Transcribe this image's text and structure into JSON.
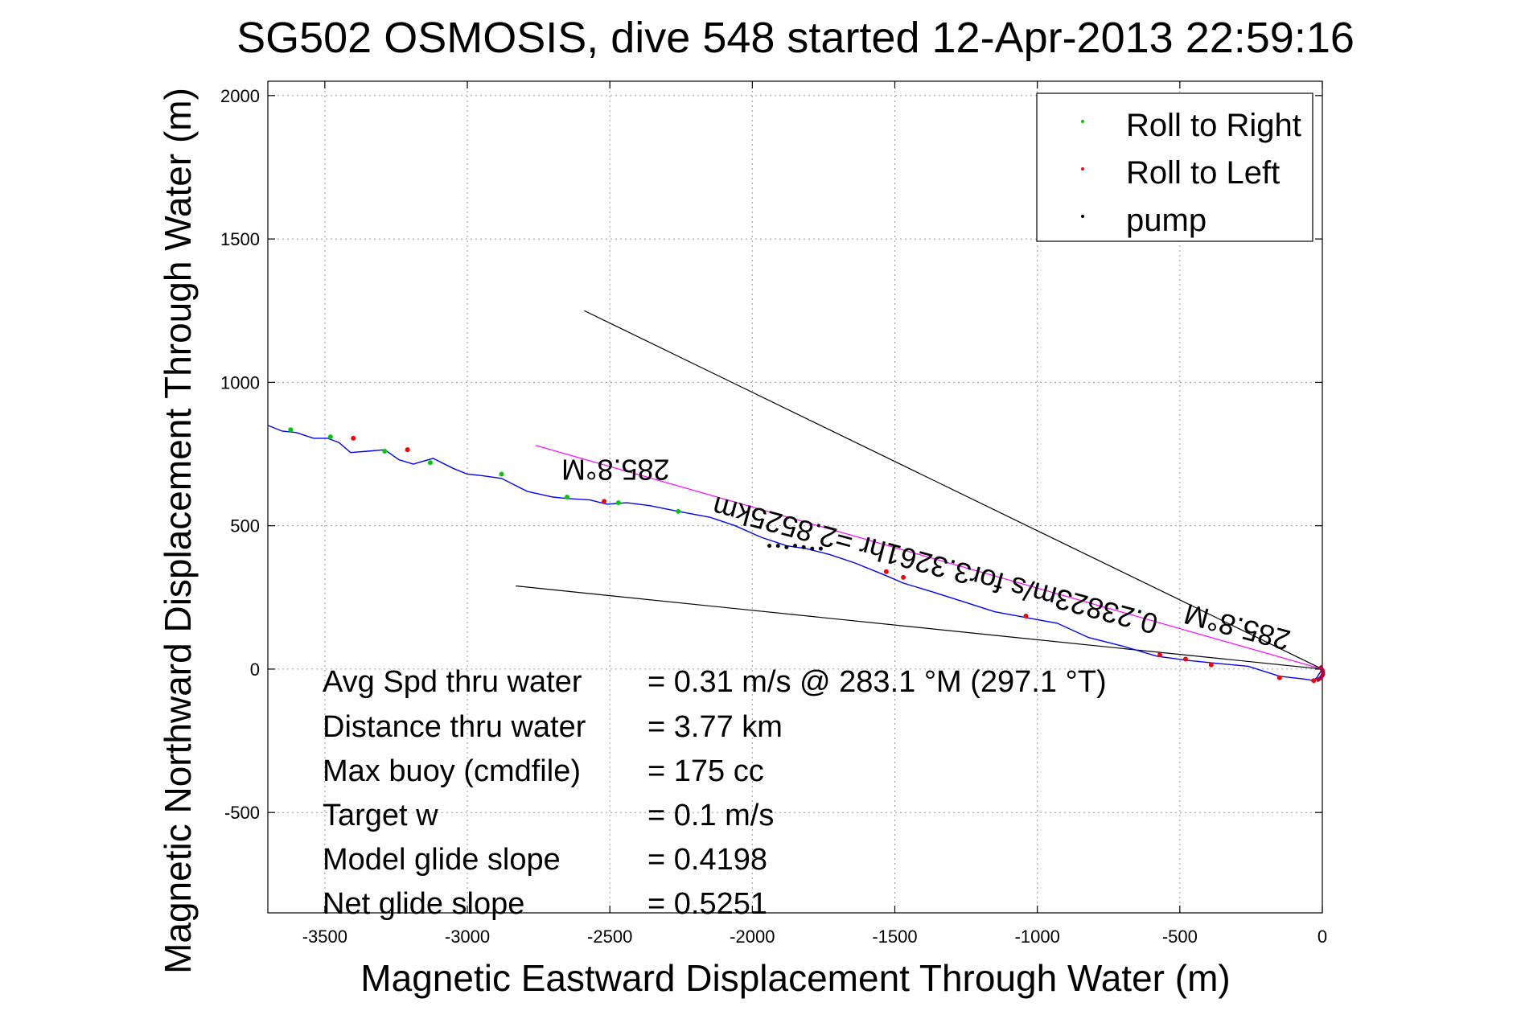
{
  "title": "SG502 OSMOSIS, dive 548 started 12-Apr-2013 22:59:16",
  "chart_data": {
    "type": "line",
    "title": "SG502 OSMOSIS, dive 548 started 12-Apr-2013 22:59:16",
    "xlabel": "Magnetic Eastward Displacement Through Water (m)",
    "ylabel": "Magnetic Northward Displacement Through Water (m)",
    "xlim": [
      -3700,
      0
    ],
    "ylim": [
      -850,
      2050
    ],
    "xticks": [
      -3500,
      -3000,
      -2500,
      -2000,
      -1500,
      -1000,
      -500,
      0
    ],
    "yticks": [
      -500,
      0,
      500,
      1000,
      1500,
      2000
    ],
    "xtick_labels": [
      "-3500",
      "-3000",
      "-2500",
      "-2000",
      "-1500",
      "-1000",
      "-500",
      "0"
    ],
    "ytick_labels": [
      "-500",
      "0",
      "500",
      "1000",
      "1500",
      "2000"
    ],
    "grid": true,
    "legend_position": "top-right",
    "legend": [
      {
        "label": "Roll to Right",
        "color": "#00cc00"
      },
      {
        "label": "Roll to Left",
        "color": "#ff0000"
      },
      {
        "label": "pump",
        "color": "#000000"
      }
    ],
    "track": {
      "color": "#0000ff",
      "x": [
        0,
        -10,
        -20,
        -30,
        -60,
        -150,
        -260,
        -370,
        -470,
        -580,
        -700,
        -820,
        -930,
        -1040,
        -1150,
        -1260,
        -1370,
        -1470,
        -1540,
        -1640,
        -1730,
        -1810,
        -1880,
        -1970,
        -2060,
        -2150,
        -2260,
        -2360,
        -2440,
        -2510,
        -2570,
        -2650,
        -2700,
        -2790,
        -2880,
        -2950,
        -3000,
        -3050,
        -3120,
        -3190,
        -3240,
        -3290,
        -3350,
        -3410,
        -3450,
        -3490,
        -3540,
        -3600,
        -3650,
        -3700
      ],
      "y": [
        0,
        -15,
        -30,
        -40,
        -35,
        -25,
        10,
        20,
        30,
        45,
        80,
        110,
        160,
        180,
        200,
        235,
        270,
        300,
        330,
        370,
        400,
        420,
        430,
        460,
        500,
        530,
        550,
        570,
        580,
        575,
        590,
        595,
        600,
        620,
        665,
        675,
        680,
        700,
        735,
        715,
        730,
        765,
        760,
        755,
        790,
        805,
        805,
        825,
        830,
        850
      ]
    },
    "roll_right_markers": {
      "color": "#00cc00",
      "x": [
        -3620,
        -3480,
        -3290,
        -3130,
        -2880,
        -2650,
        -2470,
        -2260
      ],
      "y": [
        835,
        810,
        760,
        720,
        680,
        600,
        580,
        550
      ]
    },
    "roll_left_markers": {
      "color": "#ff0000",
      "x": [
        -3400,
        -3210,
        -2520,
        -1530,
        -1470,
        -1040,
        -570,
        -480,
        -390,
        -150,
        -30
      ],
      "y": [
        805,
        765,
        585,
        340,
        320,
        185,
        50,
        35,
        15,
        -30,
        -40
      ]
    },
    "pump_markers": {
      "color": "#000000",
      "x": [
        -1940,
        -1910,
        -1880,
        -1850,
        -1820,
        -1790,
        -1760
      ],
      "y": [
        430,
        430,
        425,
        430,
        425,
        420,
        420
      ]
    },
    "heading_line": {
      "color": "#ff00ff",
      "x": [
        0,
        -2760
      ],
      "y": [
        0,
        780
      ]
    },
    "bracket_lines": {
      "color": "#000000",
      "upper": {
        "x": [
          0,
          -2590
        ],
        "y": [
          0,
          1250
        ]
      },
      "lower": {
        "x": [
          0,
          -2830
        ],
        "y": [
          0,
          290
        ]
      }
    },
    "rotated_annotations": [
      {
        "text": "285.8°M",
        "x": -2480,
        "y": 730,
        "rotation": 180
      },
      {
        "text": "0.23823m/s for3.3261hr =2.8525km",
        "x": -1350,
        "y": 395,
        "rotation": 195
      },
      {
        "text": "285.8°M",
        "x": -290,
        "y": 180,
        "rotation": 195
      }
    ],
    "stats": [
      {
        "label": "Avg Spd thru water",
        "value": "=  0.31 m/s @ 283.1 °M (297.1 °T)"
      },
      {
        "label": "Distance thru water",
        "value": "=  3.77 km"
      },
      {
        "label": "Max buoy (cmdfile)",
        "value": "= 175 cc"
      },
      {
        "label": "Target w",
        "value": "= 0.1 m/s"
      },
      {
        "label": "Model glide slope",
        "value": "= 0.4198"
      },
      {
        "label": "Net glide slope",
        "value": "= 0.5251"
      }
    ]
  }
}
